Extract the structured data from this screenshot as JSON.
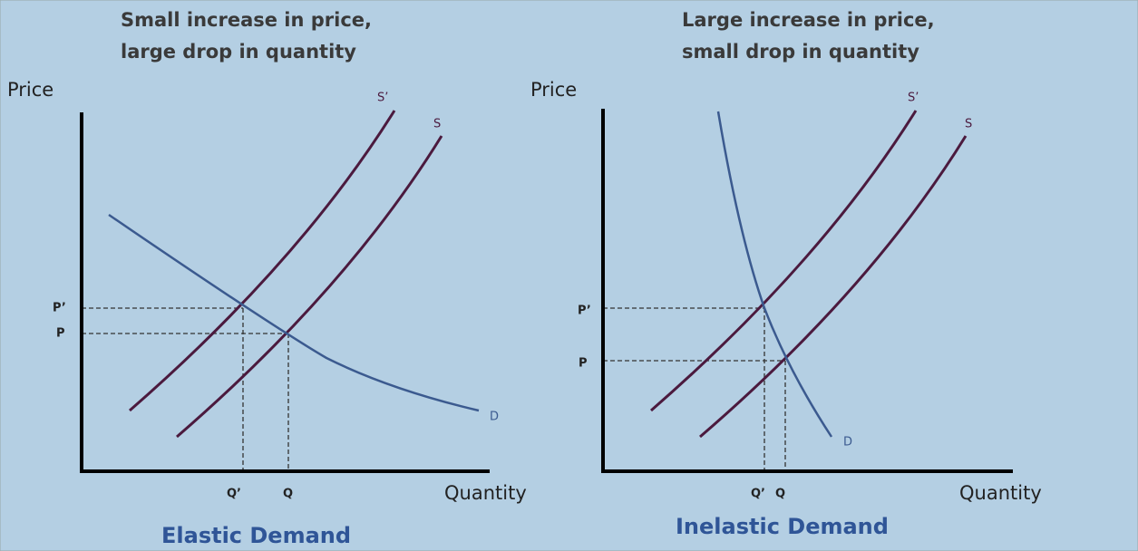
{
  "panels": [
    {
      "heading": [
        "Small increase in price,",
        "large drop in quantity"
      ],
      "y_axis_label": "Price",
      "x_axis_label": "Quantity",
      "price_labels": [
        "P’",
        "P"
      ],
      "quantity_labels": [
        "Q’",
        "Q"
      ],
      "curve_labels": [
        "S’",
        "S",
        "D"
      ],
      "caption": "Elastic Demand"
    },
    {
      "heading": [
        "Large increase in price,",
        "small drop in quantity"
      ],
      "y_axis_label": "Price",
      "x_axis_label": "Quantity",
      "price_labels": [
        "P’",
        "P"
      ],
      "quantity_labels": [
        "Q’",
        "Q"
      ],
      "curve_labels": [
        "S’",
        "S",
        "D"
      ],
      "caption": "Inelastic Demand"
    }
  ]
}
